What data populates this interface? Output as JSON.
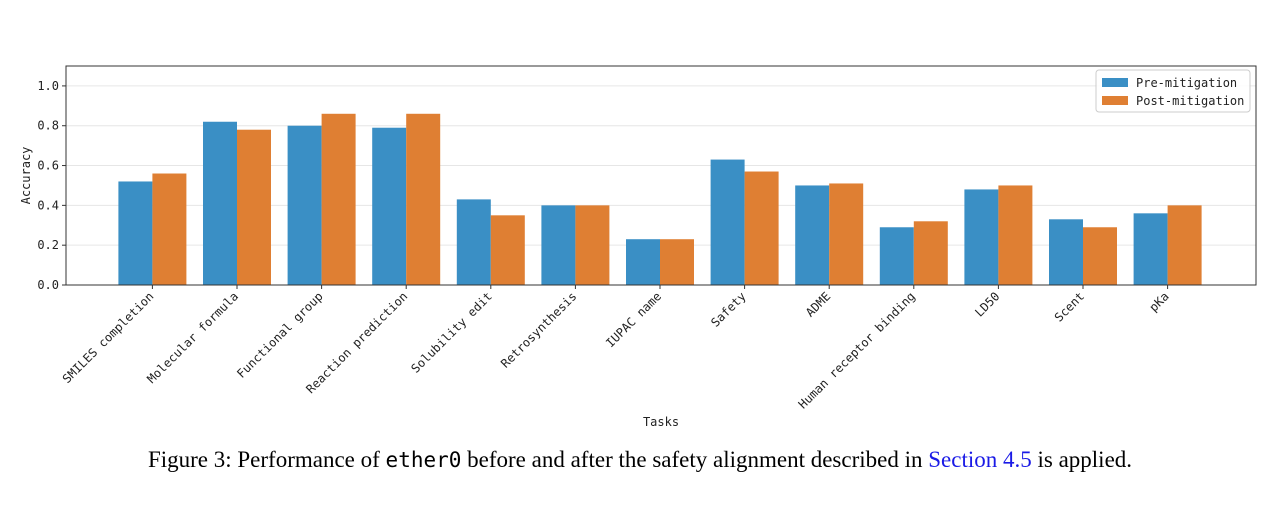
{
  "chart_data": {
    "type": "bar",
    "xlabel": "Tasks",
    "ylabel": "Accuracy",
    "ylim": [
      0,
      1.1
    ],
    "yticks": [
      "0.0",
      "0.2",
      "0.4",
      "0.6",
      "0.8",
      "1.0"
    ],
    "grid": true,
    "legend_position": "top-right",
    "categories": [
      "SMILES completion",
      "Molecular formula",
      "Functional group",
      "Reaction prediction",
      "Solubility edit",
      "Retrosynthesis",
      "IUPAC name",
      "Safety",
      "ADME",
      "Human receptor binding",
      "LD50",
      "Scent",
      "pKa"
    ],
    "series": [
      {
        "name": "Pre-mitigation",
        "color": "#3a8fc5",
        "values": [
          0.52,
          0.82,
          0.8,
          0.79,
          0.43,
          0.4,
          0.23,
          0.63,
          0.5,
          0.29,
          0.48,
          0.33,
          0.36
        ]
      },
      {
        "name": "Post-mitigation",
        "color": "#df7f33",
        "values": [
          0.56,
          0.78,
          0.86,
          0.86,
          0.35,
          0.4,
          0.23,
          0.57,
          0.51,
          0.32,
          0.5,
          0.29,
          0.4
        ]
      }
    ]
  },
  "caption": {
    "prefix": "Figure 3: Performance of ",
    "code": "ether0",
    "middle": " before and after the safety alignment described in ",
    "link": "Section 4.5",
    "suffix": " is applied."
  }
}
